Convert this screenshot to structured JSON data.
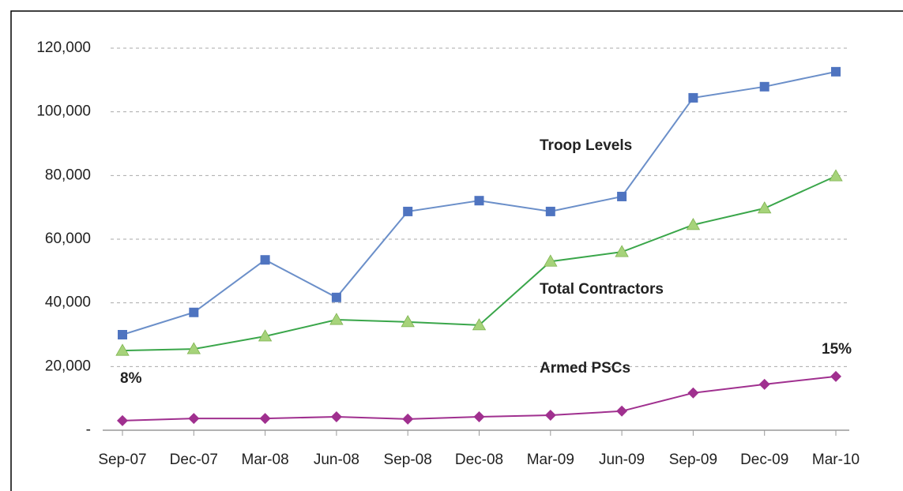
{
  "chart_data": {
    "type": "line",
    "categories": [
      "Sep-07",
      "Dec-07",
      "Mar-08",
      "Jun-08",
      "Sep-08",
      "Dec-08",
      "Mar-09",
      "Jun-09",
      "Sep-09",
      "Dec-09",
      "Mar-10"
    ],
    "series": [
      {
        "name": "Troop Levels",
        "color": "#6b8fc9",
        "marker": "square",
        "marker_color": "#4f74c0",
        "values": [
          30000,
          37000,
          53500,
          41700,
          68700,
          72100,
          68700,
          73400,
          104400,
          107900,
          112600
        ]
      },
      {
        "name": "Total Contractors",
        "color": "#3aa64a",
        "marker": "triangle",
        "marker_color": "#a6d37a",
        "values": [
          25000,
          25500,
          29500,
          34700,
          34000,
          33000,
          53000,
          56000,
          64500,
          69700,
          79800
        ]
      },
      {
        "name": "Armed PSCs",
        "color": "#a0308f",
        "marker": "diamond",
        "marker_color": "#a0308f",
        "values": [
          3000,
          3700,
          3700,
          4200,
          3500,
          4200,
          4700,
          6000,
          11700,
          14400,
          16900
        ]
      }
    ],
    "annotations": [
      {
        "text": "8%"
      },
      {
        "text": "15%"
      }
    ],
    "ylim": [
      0,
      120000
    ],
    "yticks": [
      {
        "value": 0,
        "label": "-"
      },
      {
        "value": 20000,
        "label": "20,000"
      },
      {
        "value": 40000,
        "label": "40,000"
      },
      {
        "value": 60000,
        "label": "60,000"
      },
      {
        "value": 80000,
        "label": "80,000"
      },
      {
        "value": 100000,
        "label": "100,000"
      },
      {
        "value": 120000,
        "label": "120,000"
      }
    ],
    "grid": true
  }
}
